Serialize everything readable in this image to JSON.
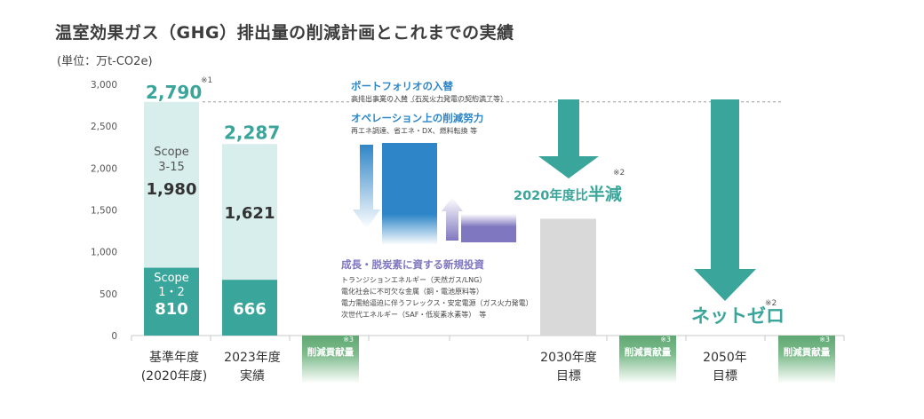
{
  "title": "温室効果ガス（GHG）排出量の削減計画とこれまでの実績",
  "unit_label": "(単位：万t-CO2e)",
  "categories": [
    {
      "line1": "基準年度",
      "line2": "(2020年度)"
    },
    {
      "line1": "2023年度",
      "line2": "実績"
    },
    {
      "line1": "2030年度",
      "line2": "目標"
    },
    {
      "line1": "2050年",
      "line2": "目標"
    }
  ],
  "contribution_badge": {
    "label": "削減貢献量",
    "note": "※3"
  },
  "annotations": {
    "portfolio_title": "ポートフォリオの入替",
    "portfolio_sub": "高排出事業の入替（石炭火力発電の契約満了等）",
    "operation_title": "オペレーション上の削減努力",
    "operation_sub": "再エネ調達、省エネ・DX、燃料転換 等",
    "growth_title": "成長・脱炭素に資する新規投資",
    "growth_items": [
      "トランジションエネルギー（天然ガス/LNG）",
      "電化社会に不可欠な金属（銅・電池原料等）",
      "電力需給逼迫に伴うフレックス・安定電源（ガス火力発電）",
      "次世代エネルギー（SAF・低炭素水素等）　等"
    ],
    "halve_prefix": "2020年度比",
    "halve_big": "半減",
    "halve_note": "※2",
    "netzero": "ネットゼロ",
    "netzero_note": "※2"
  },
  "colors": {
    "scope12": "#3aa59a",
    "scope315": "#d7eeed",
    "total_label": "#3aa59a",
    "target_bar": "#d9d9d9",
    "target_arrow": "#3aa59a",
    "portfolio": "#2e86c8",
    "operation": "#2e86c8",
    "growth": "#7f77bf",
    "axis_text": "#555555"
  },
  "chart_data": {
    "type": "bar",
    "stacked": true,
    "categories": [
      "基準年度(2020年度)",
      "2023年度実績",
      "2030年度目標",
      "2050年目標"
    ],
    "series": [
      {
        "name": "Scope 1・2",
        "values": [
          810,
          666,
          null,
          null
        ]
      },
      {
        "name": "Scope 3-15",
        "values": [
          1980,
          1621,
          null,
          null
        ]
      }
    ],
    "totals": [
      2790,
      2287,
      null,
      null
    ],
    "total_labels": [
      "2,790",
      "2,287"
    ],
    "total_note": "※1",
    "target_2030_value": 1395,
    "yticks": [
      0,
      500,
      1000,
      1500,
      2000,
      2500,
      3000
    ],
    "ytick_labels": [
      "0",
      "500",
      "1,000",
      "1,500",
      "2,000",
      "2,500",
      "3,000"
    ],
    "ylim": [
      0,
      3000
    ],
    "segment_labels": {
      "scope315_line1": "Scope",
      "scope315_line2": "3-15",
      "scope12_line1": "Scope",
      "scope12_line2": "1・2"
    },
    "value_labels": {
      "base_scope315": "1,980",
      "base_scope12": "810",
      "y2023_scope315": "1,621",
      "y2023_scope12": "666"
    },
    "grid": false
  }
}
